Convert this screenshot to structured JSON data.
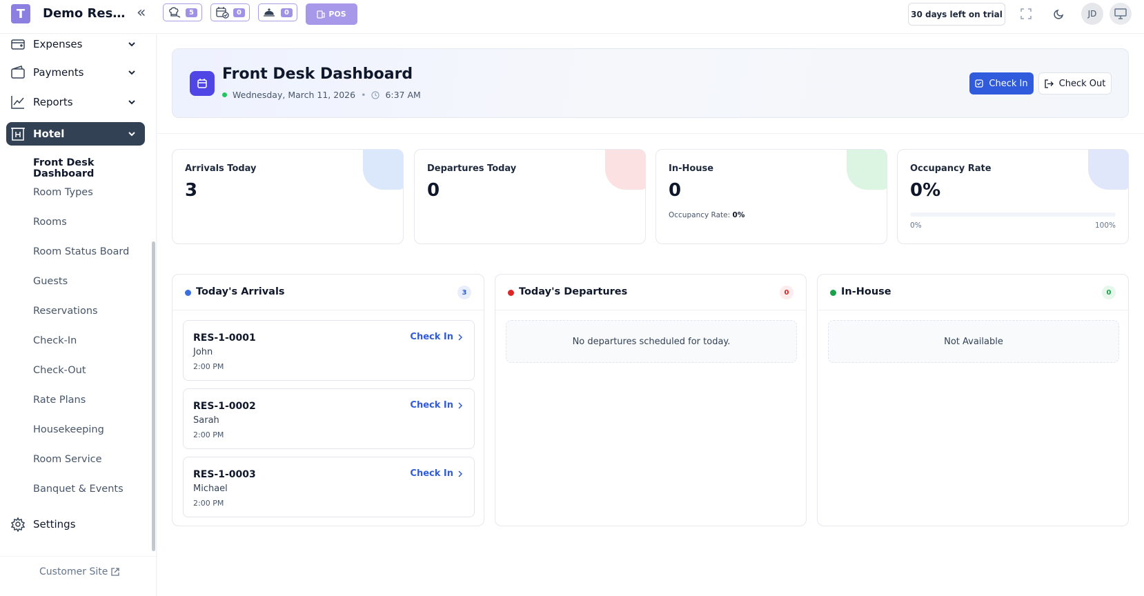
{
  "header": {
    "logo_letter": "T",
    "brand": "Demo Restaurant",
    "quick": [
      {
        "icon": "chef-icon",
        "count": "5"
      },
      {
        "icon": "calendar-check-icon",
        "count": "0"
      },
      {
        "icon": "cloche-icon",
        "count": "0"
      }
    ],
    "pos_label": "POS",
    "trial_label": "30 days left on trial",
    "avatar_initials": "JD"
  },
  "sidebar": {
    "items": [
      {
        "label": "Expenses",
        "icon": "wallet-icon"
      },
      {
        "label": "Payments",
        "icon": "payments-icon"
      },
      {
        "label": "Reports",
        "icon": "chart-line-icon"
      },
      {
        "label": "Hotel",
        "icon": "hotel-icon"
      }
    ],
    "sub_items": [
      "Front Desk Dashboard",
      "Room Types",
      "Rooms",
      "Room Status Board",
      "Guests",
      "Reservations",
      "Check-In",
      "Check-Out",
      "Rate Plans",
      "Housekeeping",
      "Room Service",
      "Banquet & Events"
    ],
    "settings_label": "Settings",
    "customer_site_label": "Customer Site"
  },
  "hero": {
    "title": "Front Desk Dashboard",
    "date": "Wednesday, March 11, 2026",
    "separator": "•",
    "time": "6:37 AM",
    "checkin_label": "Check In",
    "checkout_label": "Check Out"
  },
  "stats": [
    {
      "label": "Arrivals Today",
      "value": "3",
      "blob_color": "#dbe7fb"
    },
    {
      "label": "Departures Today",
      "value": "0",
      "blob_color": "#fbe1e1"
    },
    {
      "label": "In-House",
      "value": "0",
      "sub_label": "Occupancy Rate:",
      "sub_value": "0%",
      "blob_color": "#dcf5e3"
    },
    {
      "label": "Occupancy Rate",
      "value": "0%",
      "progress_min": "0%",
      "progress_max": "100%",
      "progress_fraction": 0,
      "blob_color": "#e0e7fb"
    }
  ],
  "arrivals": {
    "title": "Today's Arrivals",
    "count": "3",
    "items": [
      {
        "code": "RES-1-0001",
        "name": "John",
        "time": "2:00 PM",
        "action": "Check In"
      },
      {
        "code": "RES-1-0002",
        "name": "Sarah",
        "time": "2:00 PM",
        "action": "Check In"
      },
      {
        "code": "RES-1-0003",
        "name": "Michael",
        "time": "2:00 PM",
        "action": "Check In"
      }
    ]
  },
  "departures": {
    "title": "Today's Departures",
    "count": "0",
    "empty_text": "No departures scheduled for today."
  },
  "inhouse": {
    "title": "In-House",
    "count": "0",
    "empty_text": "Not Available"
  },
  "colors": {
    "accent": "#2f5bdc",
    "brand": "#8b7fe0",
    "arrivals_dot": "#3b6fe0",
    "departures_dot": "#dc2626",
    "inhouse_dot": "#16a34a"
  }
}
